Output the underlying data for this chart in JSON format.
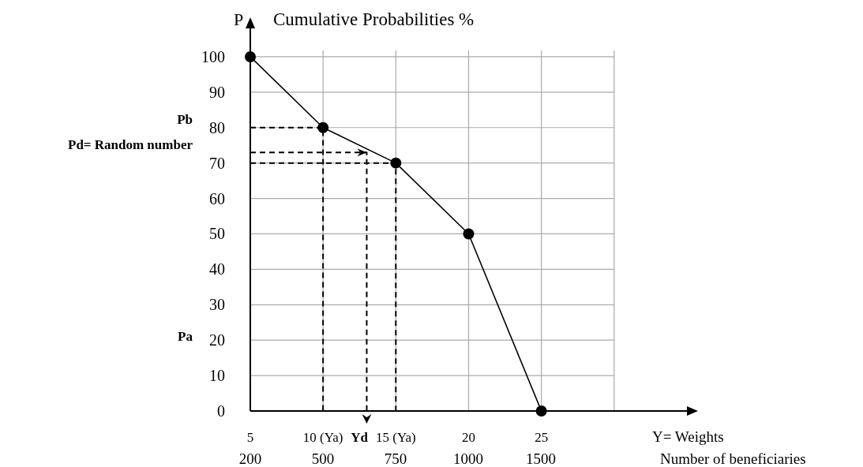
{
  "chart_data": {
    "type": "line",
    "title": "Cumulative Probabilities %",
    "ylabel": "P",
    "xlabel": "Y= Weights",
    "x2label": "Number of beneficiaries",
    "x": [
      5,
      10,
      15,
      20,
      25
    ],
    "series": [
      {
        "color": "#000000",
        "values": [
          100,
          80,
          70,
          50,
          0
        ],
        "marker": "circle",
        "line_style": "solid"
      },
      {
        "color": "#000000",
        "x": [
          5,
          10,
          10
        ],
        "values": [
          80,
          80,
          0
        ],
        "marker": "none",
        "line_style": "dashed"
      },
      {
        "color": "#000000",
        "x": [
          5,
          15,
          15
        ],
        "values": [
          70,
          70,
          0
        ],
        "marker": "none",
        "line_style": "dashed"
      },
      {
        "color": "#000000",
        "x": [
          5,
          13,
          13
        ],
        "values": [
          73,
          73,
          0
        ],
        "marker": "none",
        "line_style": "dashed"
      }
    ],
    "xlim": [
      5,
      35
    ],
    "ylim": [
      0,
      108
    ],
    "xticks": [
      5,
      {
        "value": 10,
        "label": "10 (Ya)"
      },
      {
        "value": 15,
        "label": "15 (Ya)"
      },
      20,
      25,
      {
        "value": 30,
        "label": null
      }
    ],
    "yticks": [
      0,
      10,
      20,
      30,
      40,
      50,
      60,
      70,
      80,
      90,
      100
    ],
    "grid": true,
    "annotations": [
      "Pb",
      "Pd= Random number",
      "Pa",
      "Yd",
      "200",
      "500",
      "750",
      "1000",
      "1500"
    ]
  }
}
